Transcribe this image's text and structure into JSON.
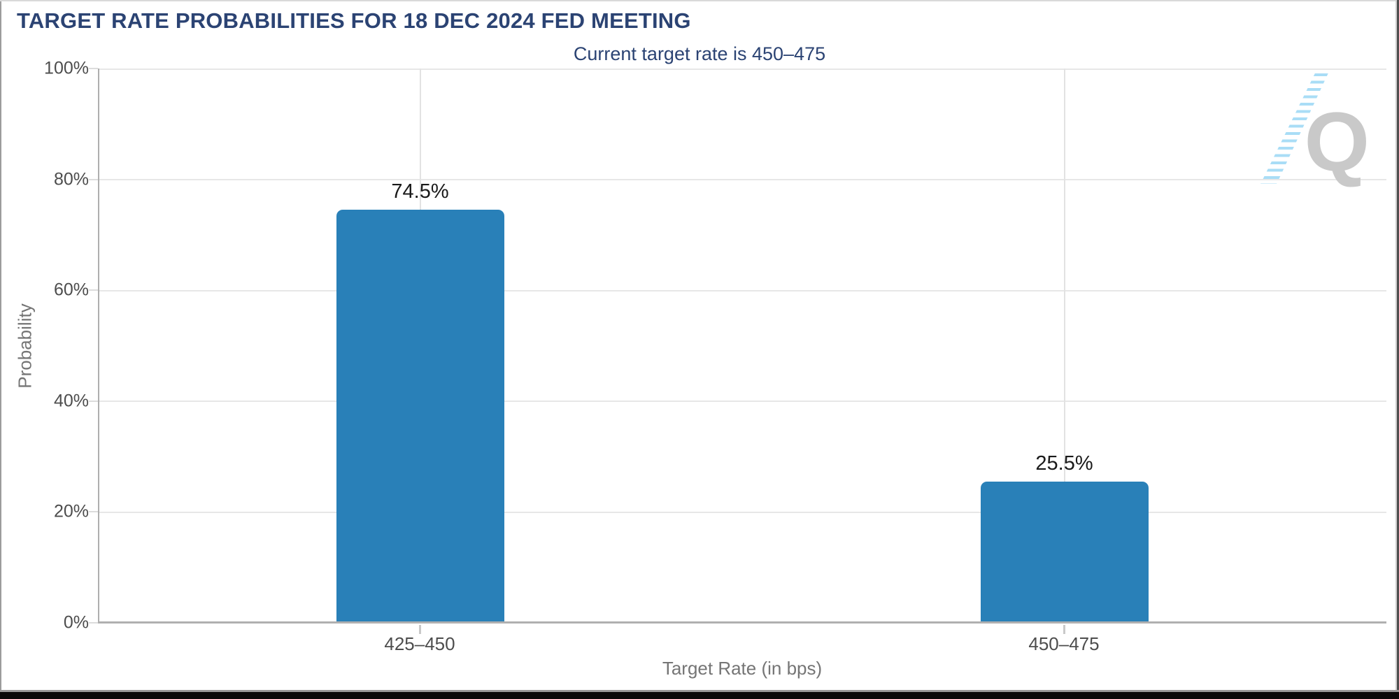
{
  "chart_data": {
    "type": "bar",
    "title": "TARGET RATE PROBABILITIES FOR 18 DEC 2024 FED MEETING",
    "subtitle": "Current target rate is 450–475",
    "categories": [
      "425–450",
      "450–475"
    ],
    "values": [
      74.5,
      25.5
    ],
    "value_labels": [
      "74.5%",
      "25.5%"
    ],
    "xlabel": "Target Rate (in bps)",
    "ylabel": "Probability",
    "y_ticks": [
      "100%",
      "80%",
      "60%",
      "40%",
      "20%",
      "0%"
    ],
    "ylim": [
      0,
      100
    ],
    "grid": true,
    "legend_position": "none",
    "bar_color": "#2980b8"
  },
  "watermark": {
    "letter": "Q"
  },
  "colors": {
    "title_navy": "#2b4373",
    "axis_text": "#4d4d4d",
    "axis_title_gray": "#757575",
    "gridline": "#e7e7e7",
    "axis_line": "#b0b0b0",
    "bar_blue": "#2980b8",
    "value_label": "#1a1a1a"
  }
}
